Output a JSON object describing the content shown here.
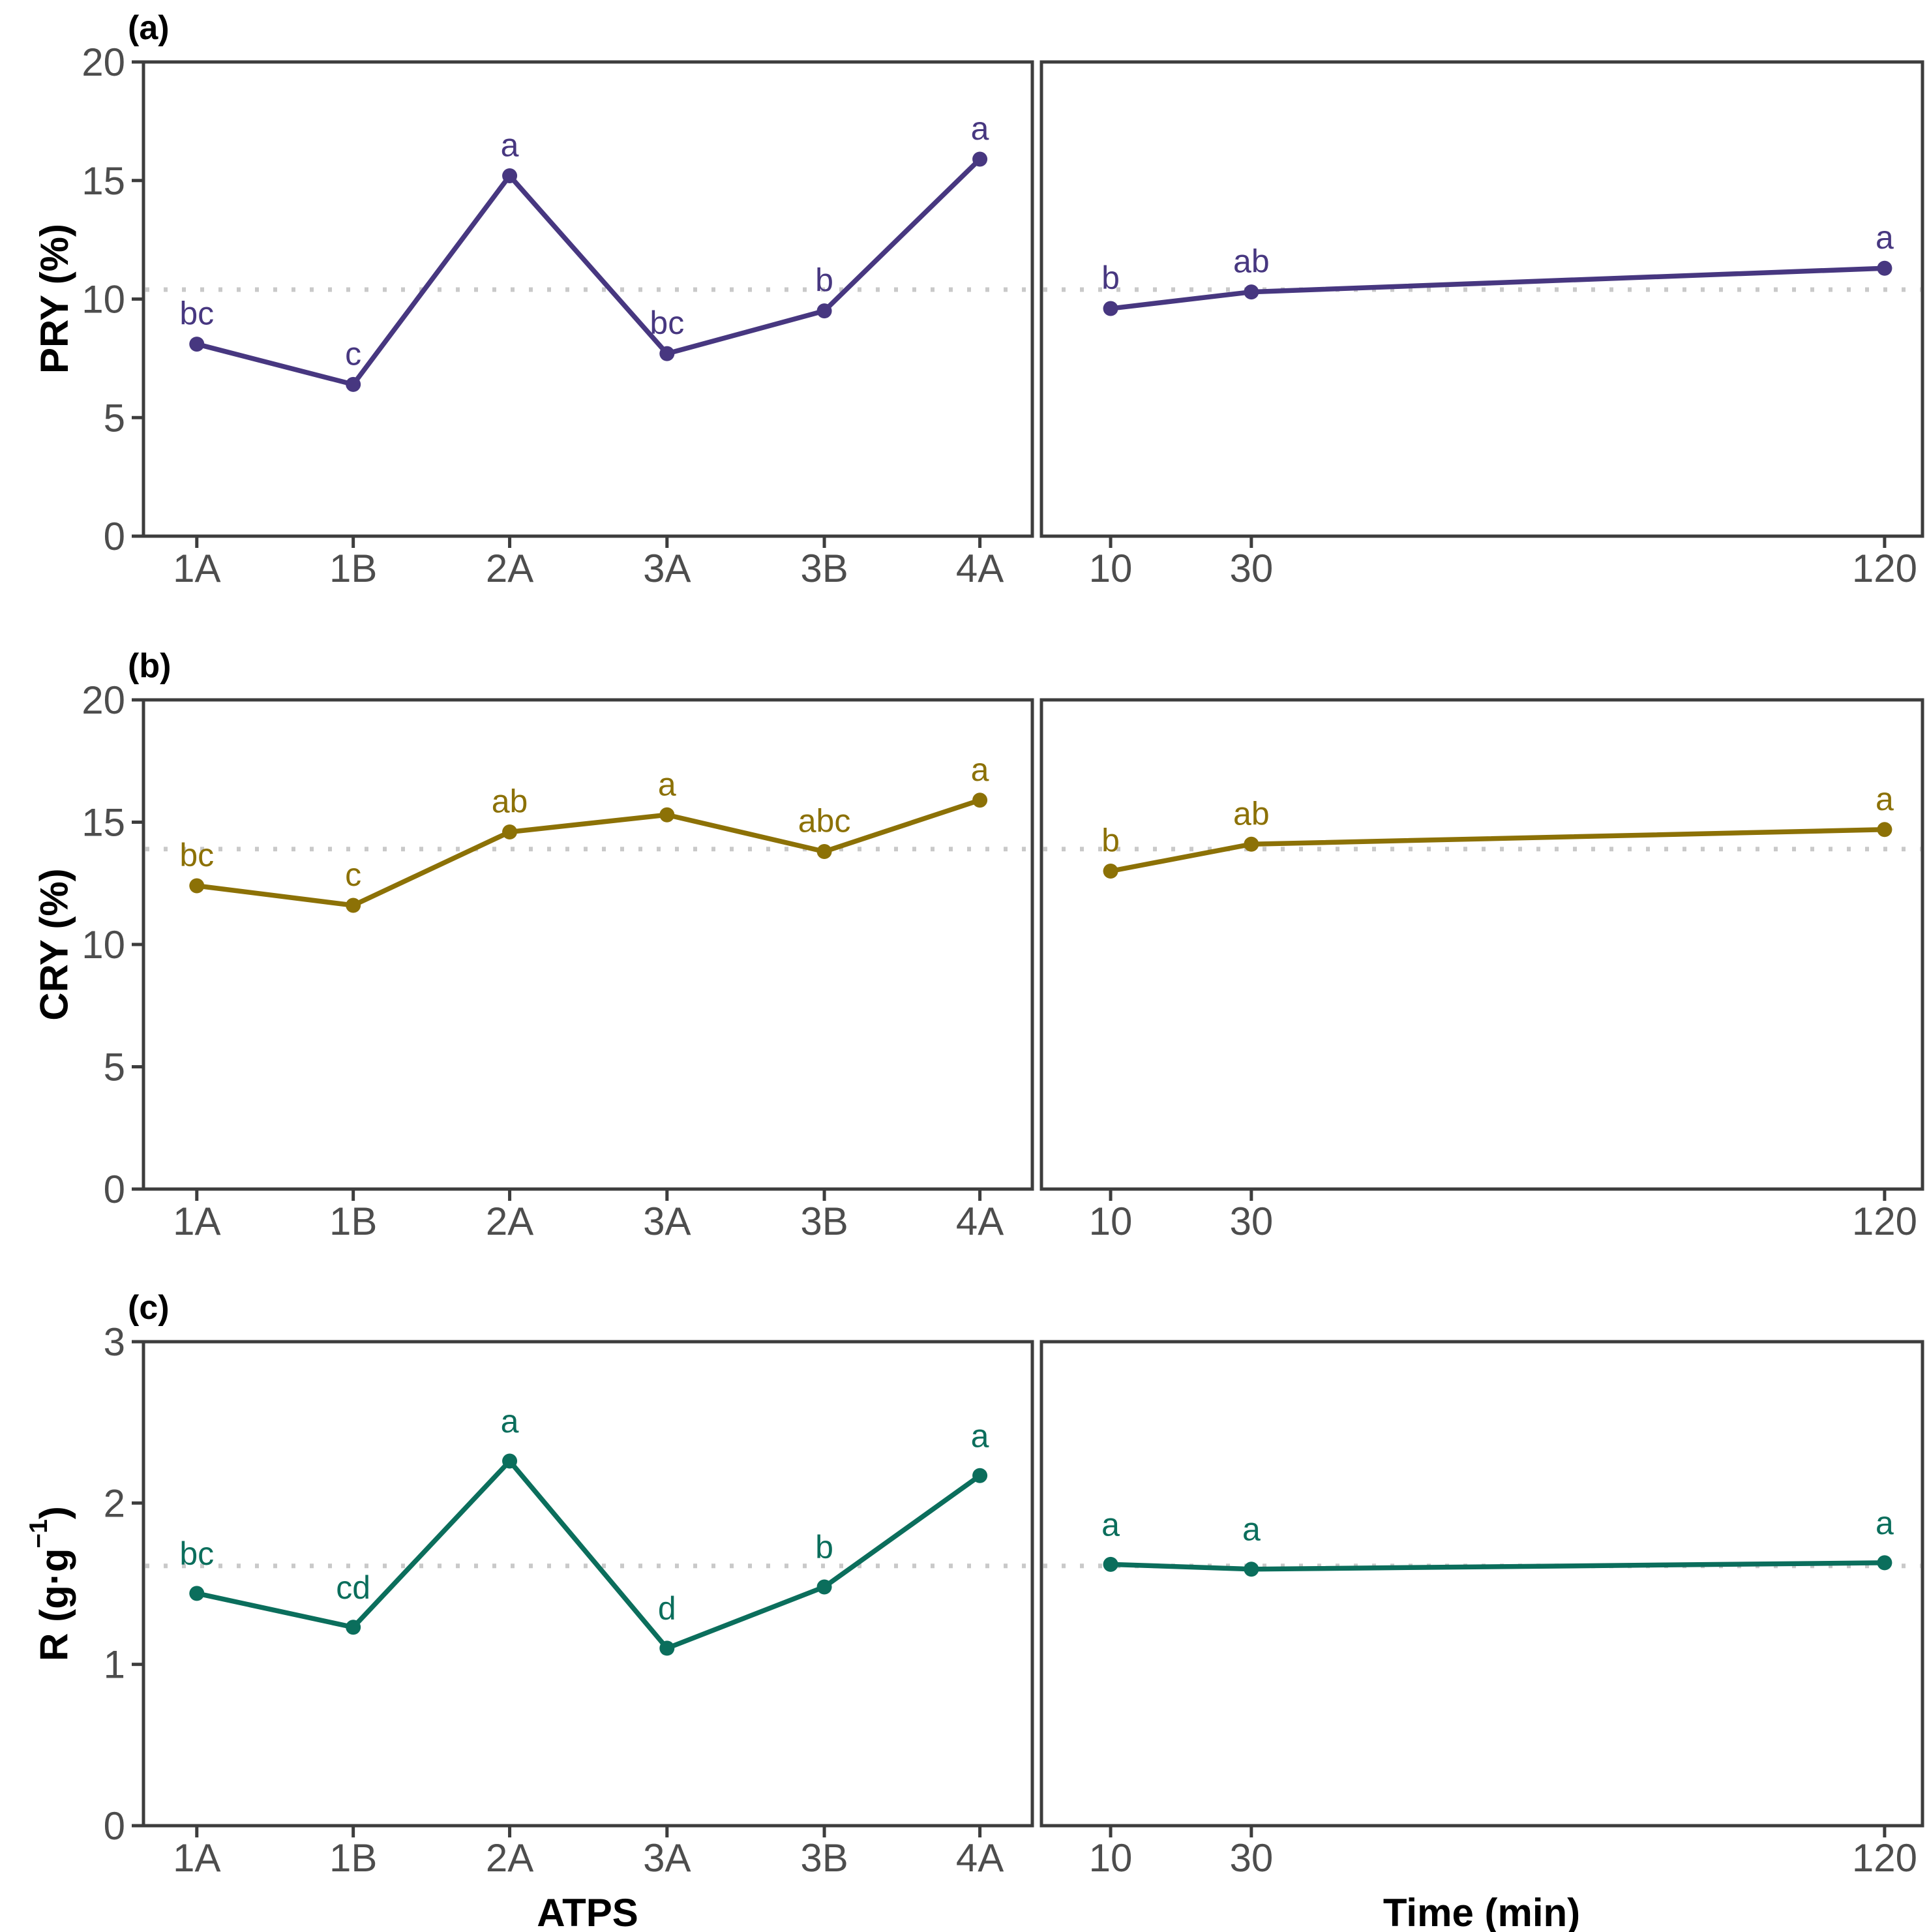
{
  "figure": {
    "colors": {
      "hline": "#c9c9c9",
      "axis": "#3d3d3d",
      "tick_text": "#4d4d4d",
      "title_text": "#000000"
    }
  },
  "x_axis": {
    "left_title": "ATPS",
    "right_title": "Time (min)"
  },
  "chart_data": [
    {
      "type": "line",
      "panel_label": "(a)",
      "ylabel": {
        "pre": "PRY (%)",
        "sup": "",
        "post": ""
      },
      "ylim": [
        0,
        20
      ],
      "yticks": [
        0,
        5,
        10,
        15,
        20
      ],
      "hline": 10.4,
      "series_color": "#473780",
      "left": {
        "x_type": "categorical",
        "categories": [
          "1A",
          "1B",
          "2A",
          "3A",
          "3B",
          "4A"
        ],
        "values": [
          8.1,
          6.4,
          15.2,
          7.7,
          9.5,
          15.9
        ],
        "letters": [
          "bc",
          "c",
          "a",
          "bc",
          "b",
          "a"
        ]
      },
      "right": {
        "x_type": "linear",
        "x": [
          10,
          30,
          120
        ],
        "values": [
          9.6,
          10.3,
          11.3
        ],
        "letters": [
          "b",
          "ab",
          "a"
        ]
      }
    },
    {
      "type": "line",
      "panel_label": "(b)",
      "ylabel": {
        "pre": "CRY (%)",
        "sup": "",
        "post": ""
      },
      "ylim": [
        0,
        20
      ],
      "yticks": [
        0,
        5,
        10,
        15,
        20
      ],
      "hline": 13.9,
      "series_color": "#8c7106",
      "left": {
        "x_type": "categorical",
        "categories": [
          "1A",
          "1B",
          "2A",
          "3A",
          "3B",
          "4A"
        ],
        "values": [
          12.4,
          11.6,
          14.6,
          15.3,
          13.8,
          15.9
        ],
        "letters": [
          "bc",
          "c",
          "ab",
          "a",
          "abc",
          "a"
        ]
      },
      "right": {
        "x_type": "linear",
        "x": [
          10,
          30,
          120
        ],
        "values": [
          13.0,
          14.1,
          14.7
        ],
        "letters": [
          "b",
          "ab",
          "a"
        ]
      }
    },
    {
      "type": "line",
      "panel_label": "(c)",
      "ylabel": {
        "pre": "R (g·g",
        "sup": "−1",
        "post": ")"
      },
      "ylim": [
        0,
        3
      ],
      "yticks": [
        0,
        1,
        2,
        3
      ],
      "hline": 1.61,
      "series_color": "#0b6e5c",
      "left": {
        "x_type": "categorical",
        "categories": [
          "1A",
          "1B",
          "2A",
          "3A",
          "3B",
          "4A"
        ],
        "values": [
          1.44,
          1.23,
          2.26,
          1.1,
          1.48,
          2.17
        ],
        "letters": [
          "bc",
          "cd",
          "a",
          "d",
          "b",
          "a"
        ]
      },
      "right": {
        "x_type": "linear",
        "x": [
          10,
          30,
          120
        ],
        "values": [
          1.62,
          1.59,
          1.63
        ],
        "letters": [
          "a",
          "a",
          "a"
        ]
      }
    }
  ]
}
